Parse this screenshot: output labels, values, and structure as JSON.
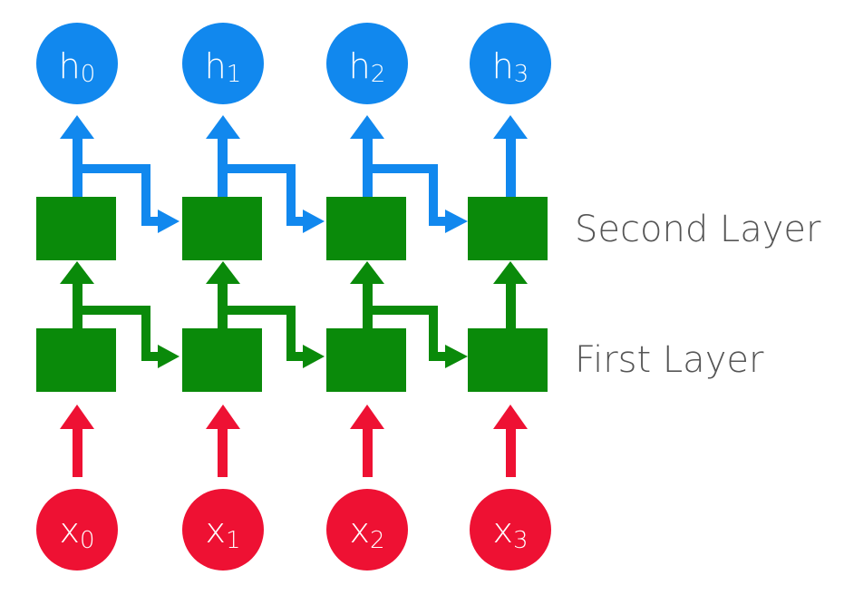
{
  "colors": {
    "output_node": "#1188EE",
    "input_node": "#EE1133",
    "cell": "#0A8A0A",
    "layer_label": "#555555",
    "background": "#FFFFFF"
  },
  "outputs": [
    {
      "base": "h",
      "sub": "0"
    },
    {
      "base": "h",
      "sub": "1"
    },
    {
      "base": "h",
      "sub": "2"
    },
    {
      "base": "h",
      "sub": "3"
    }
  ],
  "inputs": [
    {
      "base": "x",
      "sub": "0"
    },
    {
      "base": "x",
      "sub": "1"
    },
    {
      "base": "x",
      "sub": "2"
    },
    {
      "base": "x",
      "sub": "3"
    }
  ],
  "layers": {
    "second": "Second Layer",
    "first": "First Layer"
  }
}
